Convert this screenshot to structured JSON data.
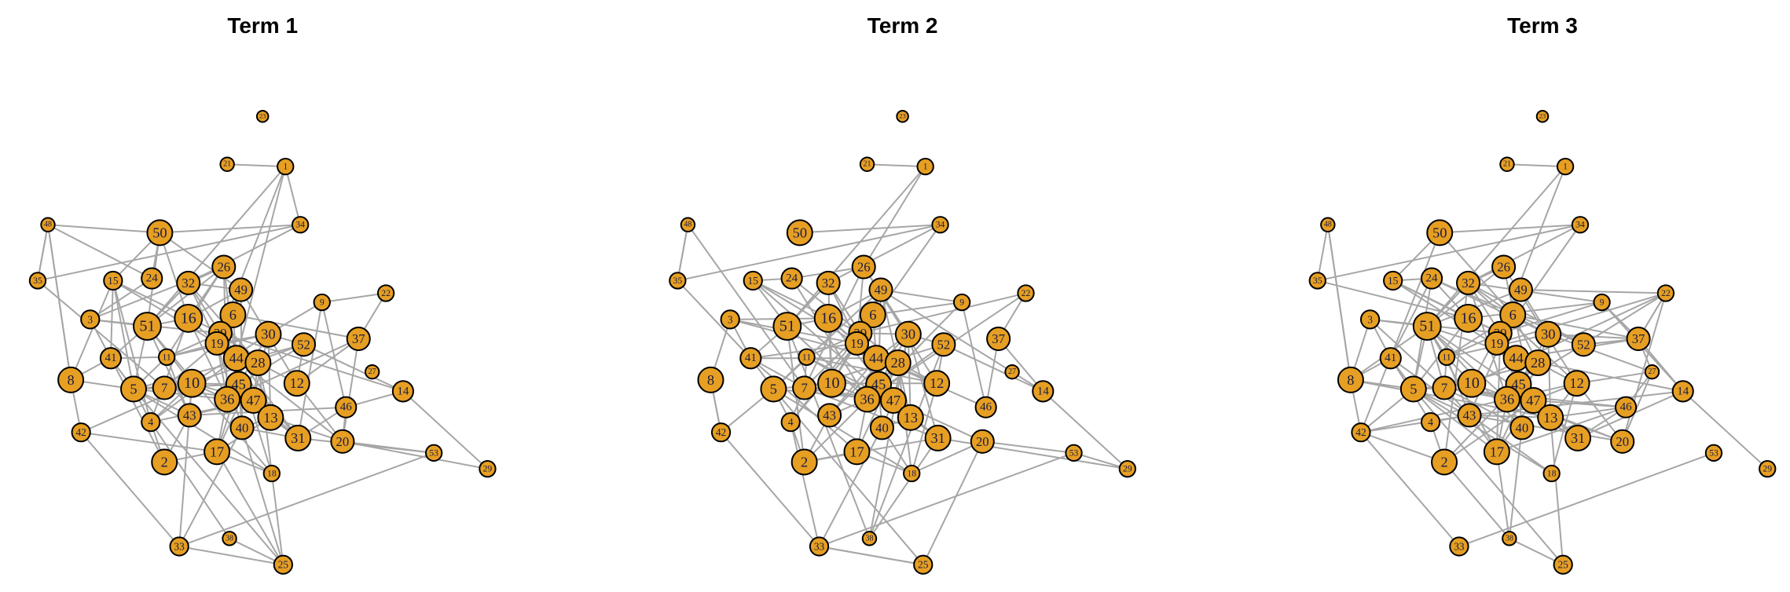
{
  "panels": [
    {
      "title": "Term 1",
      "nodes": [
        "23",
        "21",
        "1",
        "48",
        "34",
        "50",
        "35",
        "15",
        "24",
        "32",
        "26",
        "49",
        "9",
        "22",
        "3",
        "51",
        "16",
        "6",
        "39",
        "19",
        "30",
        "52",
        "37",
        "41",
        "11",
        "44",
        "28",
        "27",
        "8",
        "5",
        "7",
        "10",
        "45",
        "12",
        "14",
        "36",
        "47",
        "46",
        "43",
        "4",
        "13",
        "40",
        "42",
        "31",
        "20",
        "17",
        "2",
        "18",
        "53",
        "29",
        "33",
        "38",
        "25"
      ]
    },
    {
      "title": "Term 2",
      "nodes": [
        "23",
        "21",
        "1",
        "48",
        "34",
        "50",
        "35",
        "15",
        "24",
        "32",
        "26",
        "49",
        "9",
        "22",
        "3",
        "51",
        "16",
        "6",
        "39",
        "19",
        "30",
        "52",
        "37",
        "41",
        "11",
        "44",
        "28",
        "27",
        "8",
        "5",
        "7",
        "10",
        "45",
        "12",
        "14",
        "36",
        "47",
        "46",
        "43",
        "4",
        "13",
        "40",
        "42",
        "31",
        "20",
        "17",
        "2",
        "18",
        "53",
        "29",
        "33",
        "38",
        "25"
      ]
    },
    {
      "title": "Term 3",
      "nodes": [
        "23",
        "21",
        "1",
        "48",
        "34",
        "50",
        "35",
        "15",
        "24",
        "32",
        "26",
        "49",
        "9",
        "22",
        "3",
        "51",
        "16",
        "6",
        "39",
        "19",
        "30",
        "52",
        "37",
        "41",
        "11",
        "44",
        "28",
        "27",
        "8",
        "5",
        "7",
        "10",
        "45",
        "12",
        "14",
        "36",
        "47",
        "46",
        "43",
        "4",
        "13",
        "40",
        "42",
        "31",
        "20",
        "17",
        "2",
        "18",
        "53",
        "29",
        "33",
        "38",
        "25"
      ]
    }
  ]
}
